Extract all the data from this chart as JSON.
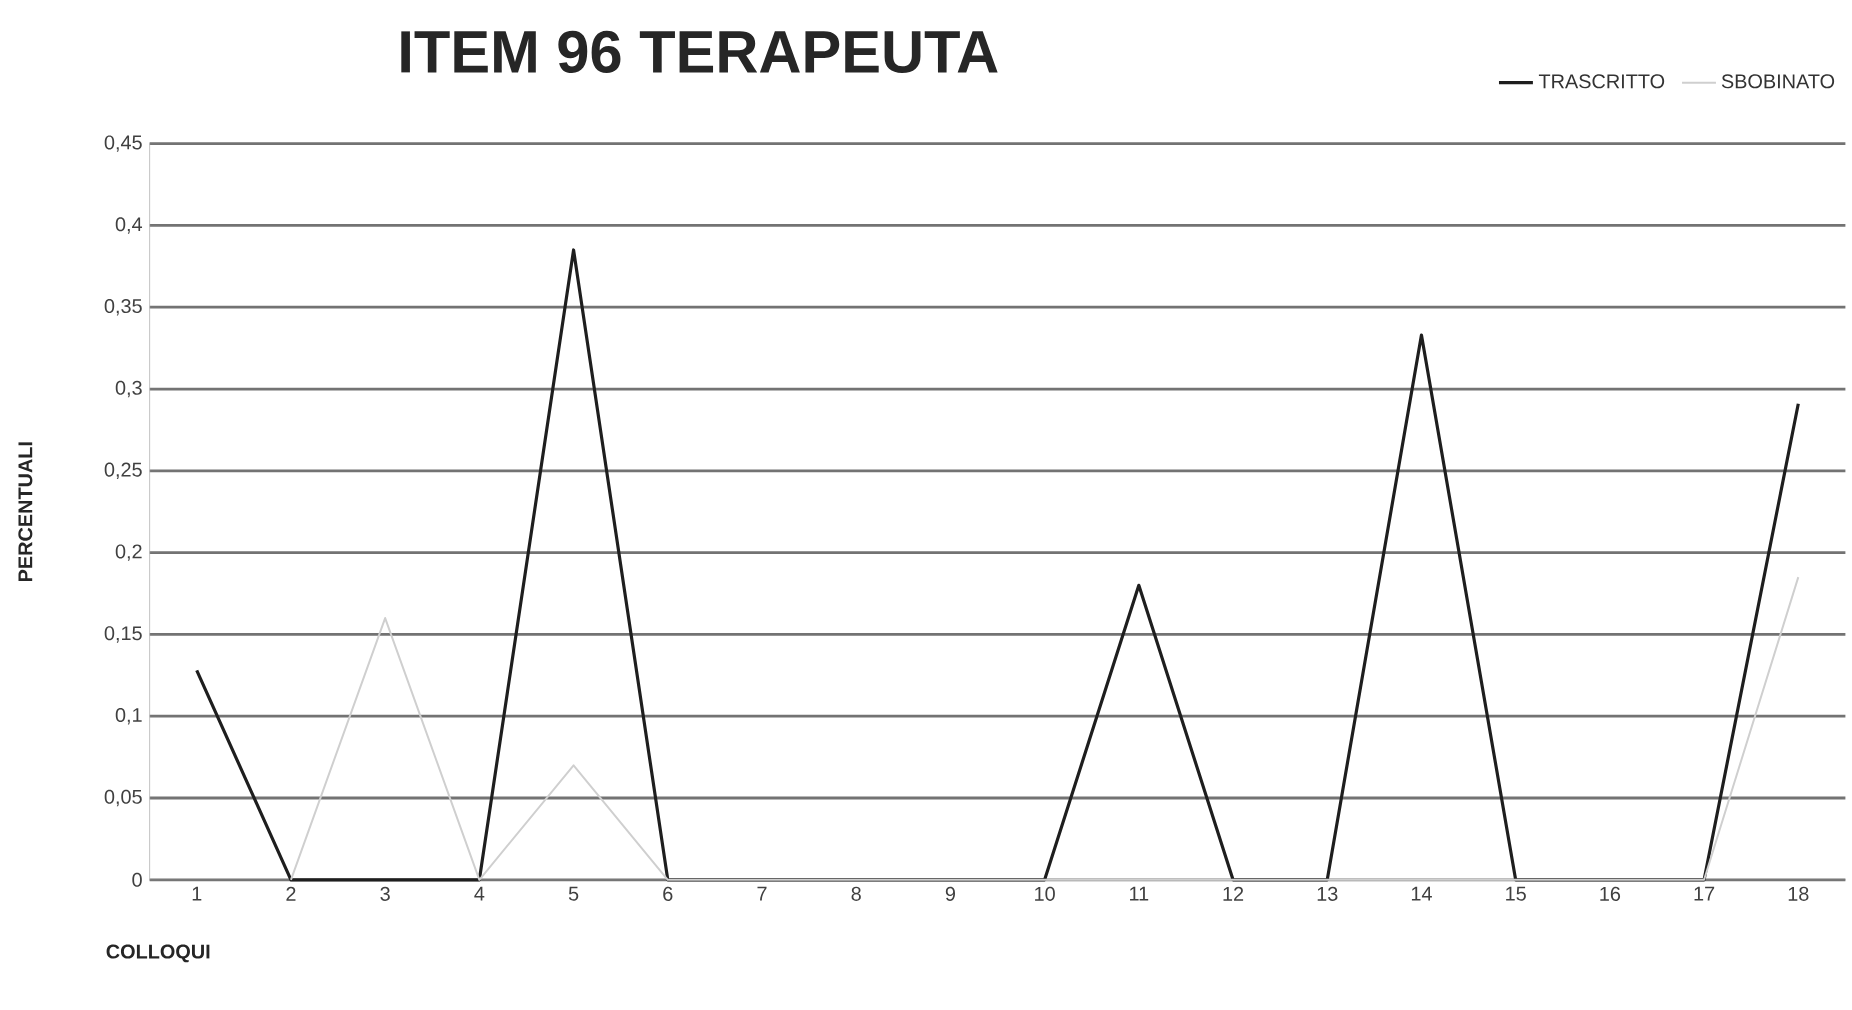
{
  "chart_data": {
    "type": "line",
    "title": "ITEM 96 TERAPEUTA",
    "xlabel": "COLLOQUI",
    "ylabel": "PERCENTUALI",
    "categories": [
      "1",
      "2",
      "3",
      "4",
      "5",
      "6",
      "7",
      "8",
      "9",
      "10",
      "11",
      "12",
      "13",
      "14",
      "15",
      "16",
      "17",
      "18"
    ],
    "series": [
      {
        "name": "TRASCRITTO",
        "color": "#1e1e1e",
        "values": [
          0.128,
          0,
          0,
          0,
          0.385,
          0,
          0,
          0,
          0,
          0,
          0.18,
          0,
          0,
          0.333,
          0,
          0,
          0,
          0.291
        ]
      },
      {
        "name": "SBOBINATO",
        "color": "#cfcfcf",
        "values": [
          null,
          0,
          0.16,
          0,
          0.07,
          0,
          0,
          0,
          0,
          0,
          0,
          0,
          0,
          0,
          0,
          0,
          0,
          0.185
        ]
      }
    ],
    "ylim": [
      0,
      0.45
    ],
    "yticks": [
      0,
      {
        "value": 0.05,
        "label": "0,05"
      },
      {
        "value": 0.1,
        "label": "0,1"
      },
      {
        "value": 0.15,
        "label": "0,15"
      },
      {
        "value": 0.2,
        "label": "0,2"
      },
      {
        "value": 0.25,
        "label": "0,25"
      },
      {
        "value": 0.3,
        "label": "0,3"
      },
      {
        "value": 0.35,
        "label": "0,35"
      },
      {
        "value": 0.4,
        "label": "0,4"
      },
      {
        "value": 0.45,
        "label": "0,45"
      }
    ],
    "grid": "y",
    "legend": "top right",
    "marker": "none",
    "line_style": "solid"
  }
}
